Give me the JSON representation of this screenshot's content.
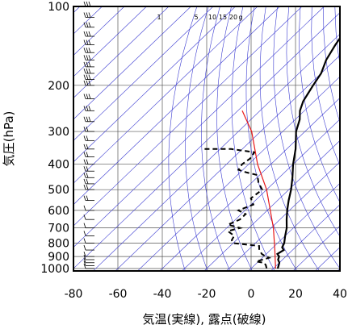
{
  "chart_data": {
    "type": "skew-t",
    "xlabel": "気温(実線), 露点(破線)",
    "ylabel": "気圧(hPa)",
    "x_ticks": [
      -80,
      -60,
      -40,
      -20,
      0,
      20,
      40
    ],
    "y_ticks": [
      100,
      200,
      300,
      400,
      500,
      600,
      700,
      800,
      900,
      1000
    ],
    "xlim": [
      -80,
      40
    ],
    "ylim": [
      1050,
      100
    ],
    "mixing_ratio_labels": [
      "1",
      "5",
      "10",
      "15",
      "20",
      "g"
    ],
    "series": [
      {
        "style": "solid",
        "points": [
          {
            "p": 100,
            "t": -70
          },
          {
            "p": 110,
            "t": -70
          },
          {
            "p": 125,
            "t": -69
          },
          {
            "p": 140,
            "t": -67
          },
          {
            "p": 160,
            "t": -64
          },
          {
            "p": 180,
            "t": -60
          },
          {
            "p": 200,
            "t": -58
          },
          {
            "p": 230,
            "t": -55
          },
          {
            "p": 250,
            "t": -52
          },
          {
            "p": 270,
            "t": -48
          },
          {
            "p": 300,
            "t": -44
          },
          {
            "p": 350,
            "t": -36
          },
          {
            "p": 400,
            "t": -30
          },
          {
            "p": 450,
            "t": -24
          },
          {
            "p": 500,
            "t": -19
          },
          {
            "p": 550,
            "t": -15
          },
          {
            "p": 600,
            "t": -11
          },
          {
            "p": 650,
            "t": -7
          },
          {
            "p": 700,
            "t": -3
          },
          {
            "p": 750,
            "t": 0
          },
          {
            "p": 800,
            "t": 3
          },
          {
            "p": 830,
            "t": 4
          },
          {
            "p": 850,
            "t": 6
          },
          {
            "p": 880,
            "t": 5
          },
          {
            "p": 900,
            "t": 7
          },
          {
            "p": 925,
            "t": 8
          },
          {
            "p": 950,
            "t": 10
          },
          {
            "p": 975,
            "t": 11
          },
          {
            "p": 1000,
            "t": 12
          }
        ]
      },
      {
        "style": "dashed",
        "points": [
          {
            "p": 350,
            "t": -77
          },
          {
            "p": 350,
            "t": -65
          },
          {
            "p": 360,
            "t": -53
          },
          {
            "p": 380,
            "t": -52
          },
          {
            "p": 400,
            "t": -53
          },
          {
            "p": 420,
            "t": -52
          },
          {
            "p": 430,
            "t": -47
          },
          {
            "p": 440,
            "t": -41
          },
          {
            "p": 470,
            "t": -37
          },
          {
            "p": 500,
            "t": -32
          },
          {
            "p": 540,
            "t": -33
          },
          {
            "p": 570,
            "t": -29
          },
          {
            "p": 600,
            "t": -33
          },
          {
            "p": 620,
            "t": -28
          },
          {
            "p": 650,
            "t": -28
          },
          {
            "p": 680,
            "t": -31
          },
          {
            "p": 700,
            "t": -24
          },
          {
            "p": 720,
            "t": -28
          },
          {
            "p": 750,
            "t": -23
          },
          {
            "p": 780,
            "t": -22
          },
          {
            "p": 800,
            "t": -20
          },
          {
            "p": 820,
            "t": -7
          },
          {
            "p": 850,
            "t": -5
          },
          {
            "p": 880,
            "t": -2
          },
          {
            "p": 900,
            "t": 1
          },
          {
            "p": 910,
            "t": 3
          },
          {
            "p": 925,
            "t": 1
          },
          {
            "p": 940,
            "t": -1
          },
          {
            "p": 950,
            "t": 3
          },
          {
            "p": 970,
            "t": 5
          },
          {
            "p": 1000,
            "t": 7
          }
        ]
      },
      {
        "style": "red",
        "points": [
          {
            "p": 1000,
            "t": 11
          },
          {
            "p": 850,
            "t": 2
          },
          {
            "p": 700,
            "t": -9
          },
          {
            "p": 500,
            "t": -30
          },
          {
            "p": 400,
            "t": -46
          },
          {
            "p": 300,
            "t": -64
          },
          {
            "p": 250,
            "t": -78
          }
        ]
      }
    ],
    "wind_barbs_pressure": [
      100,
      110,
      120,
      130,
      140,
      150,
      160,
      170,
      180,
      190,
      200,
      225,
      250,
      275,
      300,
      325,
      350,
      375,
      400,
      425,
      450,
      475,
      500,
      550,
      600,
      650,
      700,
      750,
      800,
      850,
      900,
      925,
      950,
      975,
      1000
    ],
    "colors": {
      "temperature": "#000000",
      "dewpoint": "#000000",
      "parcel": "#e81818",
      "isotherm": "#3b3bd1",
      "dry_adiabat": "#3b3bd1"
    }
  }
}
